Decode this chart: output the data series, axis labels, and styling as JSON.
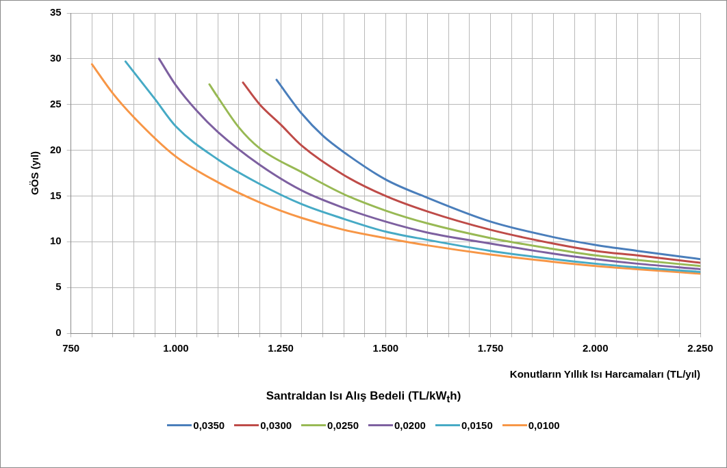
{
  "chart_data": {
    "type": "line",
    "xlabel": "Konutların Yıllık Isı Harcamaları (TL/yıl)",
    "ylabel": "GÖS (yıl)",
    "legend_title": "Santraldan Isı Alış Bedeli (TL/kW$_{t}$h)",
    "legend": "bottom",
    "grid": true,
    "marker": "none",
    "line_style": "solid",
    "xlim": [
      750,
      2250
    ],
    "xticks": [
      750,
      {
        "value": 800,
        "label": null
      },
      {
        "value": 850,
        "label": null
      },
      {
        "value": 900,
        "label": null
      },
      {
        "value": 950,
        "label": null
      },
      {
        "value": 1000,
        "label": "1.000"
      },
      {
        "value": 1050,
        "label": null
      },
      {
        "value": 1100,
        "label": null
      },
      {
        "value": 1150,
        "label": null
      },
      {
        "value": 1200,
        "label": null
      },
      {
        "value": 1250,
        "label": "1.250"
      },
      {
        "value": 1300,
        "label": null
      },
      {
        "value": 1350,
        "label": null
      },
      {
        "value": 1400,
        "label": null
      },
      {
        "value": 1450,
        "label": null
      },
      {
        "value": 1500,
        "label": "1.500"
      },
      {
        "value": 1550,
        "label": null
      },
      {
        "value": 1600,
        "label": null
      },
      {
        "value": 1650,
        "label": null
      },
      {
        "value": 1700,
        "label": null
      },
      {
        "value": 1750,
        "label": "1.750"
      },
      {
        "value": 1800,
        "label": null
      },
      {
        "value": 1850,
        "label": null
      },
      {
        "value": 1900,
        "label": null
      },
      {
        "value": 1950,
        "label": null
      },
      {
        "value": 2000,
        "label": "2.000"
      },
      {
        "value": 2050,
        "label": null
      },
      {
        "value": 2100,
        "label": null
      },
      {
        "value": 2150,
        "label": null
      },
      {
        "value": 2200,
        "label": null
      },
      {
        "value": 2250,
        "label": "2.250"
      }
    ],
    "ylim": [
      0,
      35
    ],
    "yticks": [
      0,
      5,
      10,
      15,
      20,
      25,
      30,
      35
    ],
    "series": [
      {
        "name": "0,0350",
        "color": "#4a7ebb",
        "x": [
          1240,
          1300,
          1350,
          1400,
          1500,
          1600,
          1750,
          1900,
          2000,
          2100,
          2250
        ],
        "values": [
          27.7,
          24.0,
          21.6,
          19.8,
          16.8,
          14.8,
          12.2,
          10.5,
          9.65,
          9.0,
          8.1
        ]
      },
      {
        "name": "0,0300",
        "color": "#be4b48",
        "x": [
          1160,
          1200,
          1250,
          1300,
          1400,
          1500,
          1600,
          1750,
          1900,
          2000,
          2100,
          2250
        ],
        "values": [
          27.4,
          25.0,
          22.8,
          20.5,
          17.3,
          15.0,
          13.3,
          11.3,
          9.8,
          9.0,
          8.5,
          7.7
        ]
      },
      {
        "name": "0,0250",
        "color": "#98b954",
        "x": [
          1080,
          1100,
          1150,
          1200,
          1300,
          1400,
          1500,
          1600,
          1750,
          1900,
          2000,
          2100,
          2250
        ],
        "values": [
          27.2,
          25.8,
          22.5,
          20.2,
          17.6,
          15.2,
          13.4,
          12.0,
          10.4,
          9.2,
          8.5,
          8.0,
          7.35
        ]
      },
      {
        "name": "0,0200",
        "color": "#7d60a0",
        "x": [
          960,
          1000,
          1050,
          1100,
          1200,
          1300,
          1400,
          1500,
          1600,
          1750,
          1900,
          2000,
          2100,
          2250
        ],
        "values": [
          30.0,
          27.1,
          24.3,
          22.0,
          18.4,
          15.6,
          13.7,
          12.2,
          11.0,
          9.8,
          8.7,
          8.1,
          7.6,
          7.0
        ]
      },
      {
        "name": "0,0150",
        "color": "#46aac5",
        "x": [
          880,
          950,
          1000,
          1100,
          1200,
          1300,
          1400,
          1500,
          1600,
          1750,
          1900,
          2000,
          2100,
          2250
        ],
        "values": [
          29.7,
          25.6,
          22.6,
          19.0,
          16.3,
          14.1,
          12.5,
          11.1,
          10.2,
          9.0,
          8.1,
          7.6,
          7.2,
          6.7
        ]
      },
      {
        "name": "0,0100",
        "color": "#f79646",
        "x": [
          800,
          850,
          900,
          1000,
          1100,
          1200,
          1300,
          1400,
          1500,
          1600,
          1750,
          1900,
          2000,
          2100,
          2250
        ],
        "values": [
          29.4,
          26.2,
          23.6,
          19.3,
          16.5,
          14.3,
          12.6,
          11.3,
          10.4,
          9.6,
          8.6,
          7.8,
          7.35,
          7.0,
          6.5
        ]
      }
    ]
  }
}
